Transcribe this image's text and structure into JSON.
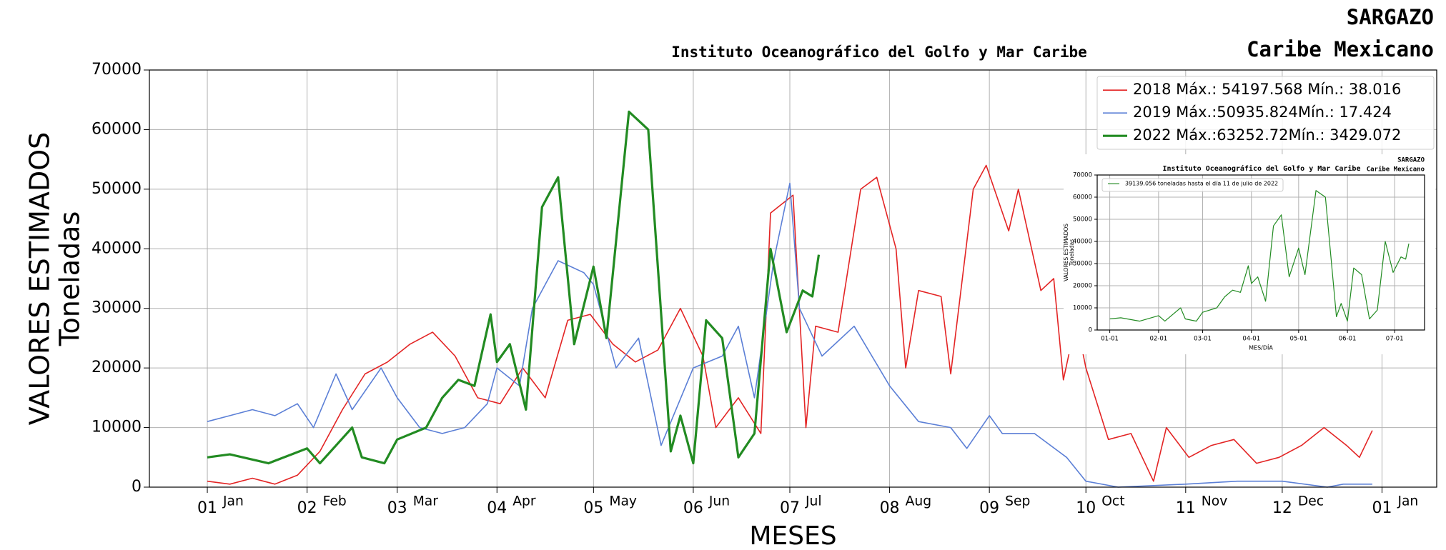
{
  "chart_data": [
    {
      "type": "line",
      "title": "Instituto Oceanográfico del Golfo y Mar Caribe",
      "corner_title": [
        "SARGAZO",
        "Caribe Mexicano"
      ],
      "xlabel": "MESES",
      "ylabel": [
        "VALORES ESTIMADOS",
        "Toneladas"
      ],
      "xlim": [
        -18,
        382
      ],
      "xticks": [
        {
          "value": 0,
          "label": "01"
        },
        {
          "value": 31,
          "label": "02"
        },
        {
          "value": 59,
          "label": "03"
        },
        {
          "value": 90,
          "label": "04"
        },
        {
          "value": 120,
          "label": "05"
        },
        {
          "value": 151,
          "label": "06"
        },
        {
          "value": 181,
          "label": "07"
        },
        {
          "value": 212,
          "label": "08"
        },
        {
          "value": 243,
          "label": "09"
        },
        {
          "value": 273,
          "label": "10"
        },
        {
          "value": 304,
          "label": "11"
        },
        {
          "value": 334,
          "label": "12"
        },
        {
          "value": 365,
          "label": "01"
        }
      ],
      "xtick_months": [
        "Jan",
        "Feb",
        "Mar",
        "Apr",
        "May",
        "Jun",
        "Jul",
        "Aug",
        "Sep",
        "Oct",
        "Nov",
        "Dec",
        "Jan"
      ],
      "ylim": [
        0,
        70000
      ],
      "yticks": [
        0,
        10000,
        20000,
        30000,
        40000,
        50000,
        60000,
        70000
      ],
      "grid": true,
      "legend": "upper right",
      "series": [
        {
          "name": "2018 Máx.: 54197.568 Mín.: 38.016",
          "color": "#e32424",
          "width": 1.6,
          "x": [
            0,
            7,
            14,
            21,
            28,
            35,
            42,
            49,
            56,
            63,
            70,
            77,
            84,
            91,
            98,
            105,
            112,
            119,
            126,
            133,
            140,
            147,
            154,
            158,
            165,
            172,
            175,
            182,
            186,
            189,
            196,
            203,
            208,
            214,
            217,
            221,
            228,
            231,
            238,
            242,
            249,
            252,
            259,
            263,
            266,
            270,
            273,
            280,
            287,
            294,
            298,
            305,
            312,
            319,
            326,
            333,
            340,
            347,
            354,
            358,
            362
          ],
          "values": [
            1000,
            500,
            1500,
            500,
            2000,
            6000,
            13000,
            19000,
            21000,
            24000,
            26000,
            22000,
            15000,
            14000,
            20000,
            15000,
            28000,
            29000,
            24000,
            21000,
            23000,
            30000,
            22000,
            10000,
            15000,
            9000,
            46000,
            49000,
            10000,
            27000,
            26000,
            50000,
            52000,
            40000,
            20000,
            33000,
            32000,
            19000,
            50000,
            54000,
            43000,
            50000,
            33000,
            35000,
            18000,
            28000,
            20000,
            8000,
            9000,
            1000,
            10000,
            5000,
            7000,
            8000,
            4000,
            5000,
            7000,
            10000,
            7000,
            5000,
            9500
          ]
        },
        {
          "name": "2019 Máx.:50935.824Mín.: 17.424",
          "color": "#5b7fd6",
          "width": 1.6,
          "x": [
            0,
            7,
            14,
            21,
            28,
            33,
            40,
            45,
            54,
            59,
            66,
            73,
            80,
            87,
            90,
            97,
            101,
            109,
            117,
            120,
            127,
            134,
            141,
            151,
            160,
            165,
            170,
            176,
            181,
            184,
            191,
            201,
            212,
            221,
            231,
            236,
            243,
            247,
            257,
            267,
            273,
            283,
            304,
            320,
            334,
            348,
            353,
            362
          ],
          "values": [
            11000,
            12000,
            13000,
            12000,
            14000,
            10000,
            19000,
            13000,
            20000,
            15000,
            10000,
            9000,
            10000,
            14000,
            20000,
            17000,
            30000,
            38000,
            36000,
            34000,
            20000,
            25000,
            7000,
            20000,
            22000,
            27000,
            15000,
            38000,
            51000,
            30000,
            22000,
            27000,
            17000,
            11000,
            10000,
            6500,
            12000,
            9000,
            9000,
            5000,
            1000,
            0,
            500,
            1000,
            1000,
            0,
            500,
            500
          ]
        },
        {
          "name": "2022 Máx.:63252.72Mín.: 3429.072",
          "color": "#228b22",
          "width": 3.2,
          "x": [
            0,
            7,
            19,
            31,
            35,
            45,
            48,
            55,
            59,
            68,
            73,
            78,
            83,
            88,
            90,
            94,
            99,
            104,
            109,
            114,
            120,
            124,
            131,
            137,
            144,
            147,
            151,
            155,
            160,
            165,
            170,
            175,
            180,
            185,
            188,
            190
          ],
          "values": [
            5000,
            5500,
            4000,
            6500,
            4000,
            10000,
            5000,
            4000,
            8000,
            10000,
            15000,
            18000,
            17000,
            29000,
            21000,
            24000,
            13000,
            47000,
            52000,
            24000,
            37000,
            25000,
            63000,
            60000,
            6000,
            12000,
            4000,
            28000,
            25000,
            5000,
            9000,
            40000,
            26000,
            33000,
            32000,
            39000
          ]
        }
      ]
    },
    {
      "type": "line",
      "title": "Instituto Oceanográfico del Golfo y Mar Caribe",
      "corner_title": [
        "SARGAZO",
        "Caribe Mexicano"
      ],
      "xlabel": "MES/DÍA",
      "ylabel": [
        "VALORES ESTIMADOS",
        "Toneladas"
      ],
      "xlim": [
        -8,
        200
      ],
      "xticks": [
        {
          "value": 0,
          "label": "01-01"
        },
        {
          "value": 31,
          "label": "02-01"
        },
        {
          "value": 59,
          "label": "03-01"
        },
        {
          "value": 90,
          "label": "04-01"
        },
        {
          "value": 120,
          "label": "05-01"
        },
        {
          "value": 151,
          "label": "06-01"
        },
        {
          "value": 181,
          "label": "07-01"
        }
      ],
      "ylim": [
        0,
        70000
      ],
      "yticks": [
        0,
        10000,
        20000,
        30000,
        40000,
        50000,
        60000,
        70000
      ],
      "grid": true,
      "legend": "upper left",
      "series": [
        {
          "name": "39139.056 toneladas hasta el día 11 de julio de 2022",
          "color": "#228b22",
          "width": 1.2,
          "x": [
            0,
            7,
            19,
            31,
            35,
            45,
            48,
            55,
            59,
            68,
            73,
            78,
            83,
            88,
            90,
            94,
            99,
            104,
            109,
            114,
            120,
            124,
            131,
            137,
            144,
            147,
            151,
            155,
            160,
            165,
            170,
            175,
            180,
            185,
            188,
            190
          ],
          "values": [
            5000,
            5500,
            4000,
            6500,
            4000,
            10000,
            5000,
            4000,
            8000,
            10000,
            15000,
            18000,
            17000,
            29000,
            21000,
            24000,
            13000,
            47000,
            52000,
            24000,
            37000,
            25000,
            63000,
            60000,
            6000,
            12000,
            4000,
            28000,
            25000,
            5000,
            9000,
            40000,
            26000,
            33000,
            32000,
            39000
          ]
        }
      ]
    }
  ]
}
